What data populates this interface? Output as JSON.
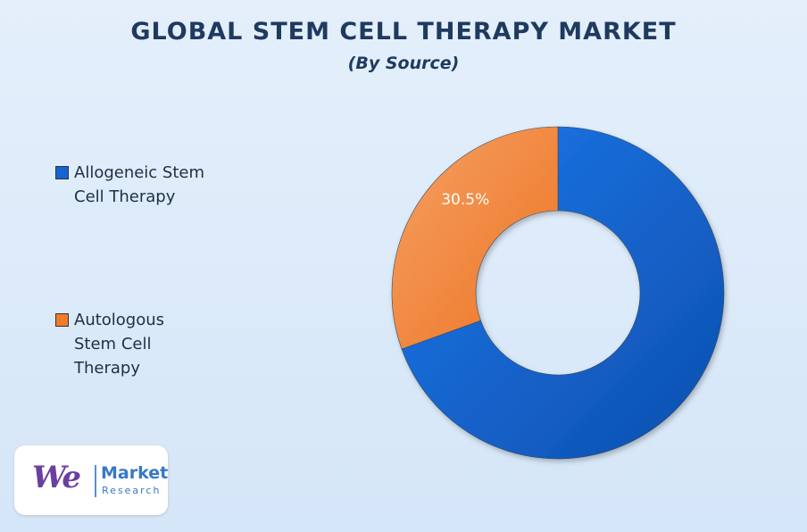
{
  "chart_data": {
    "type": "pie",
    "variant": "donut",
    "title": "GLOBAL STEM CELL THERAPY MARKET",
    "subtitle": "(By Source)",
    "categories": [
      "Allogeneic Stem Cell Therapy",
      "Autologous Stem Cell Therapy"
    ],
    "values": [
      69.5,
      30.5
    ],
    "data_labels": [
      "",
      "30.5%"
    ],
    "colors": [
      "#1464d4",
      "#ef7d2a"
    ],
    "legend_labels": [
      "Allogeneic Stem\nCell Therapy",
      "Autologous\nStem Cell\nTherapy"
    ],
    "legend_position": "left"
  },
  "logo": {
    "we": "We",
    "market": "Market",
    "research": "Research"
  }
}
